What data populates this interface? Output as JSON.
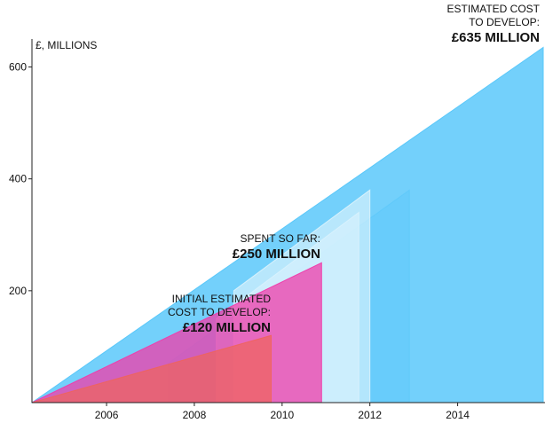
{
  "chart_data": {
    "type": "area",
    "title": "",
    "xlabel": "",
    "ylabel": "£, MILLIONS",
    "xlim": [
      2004.3,
      2015.95
    ],
    "ylim": [
      0,
      650
    ],
    "x_ticks": [
      "2006",
      "2008",
      "2010",
      "2012",
      "2014"
    ],
    "y_ticks": [
      "200",
      "400",
      "600"
    ],
    "series": [
      {
        "color": "#5ac8fa",
        "opacity": 0.85,
        "points": [
          [
            2004.3,
            0
          ],
          [
            2015.95,
            635
          ],
          [
            2015.95,
            0
          ]
        ]
      },
      {
        "color": "#5ac8fa",
        "opacity": 0.45,
        "points": [
          [
            2007.4,
            70
          ],
          [
            2012.9,
            380
          ],
          [
            2012.9,
            0
          ],
          [
            2007.4,
            0
          ]
        ]
      },
      {
        "color": "#cfeefd",
        "opacity": 0.6,
        "points": [
          [
            2008.5,
            150
          ],
          [
            2011.75,
            340
          ],
          [
            2011.75,
            0
          ],
          [
            2008.5,
            0
          ]
        ]
      },
      {
        "color": "#e6f6fd",
        "opacity": 0.6,
        "points": [
          [
            2008.9,
            200
          ],
          [
            2012.0,
            380
          ],
          [
            2012.0,
            0
          ],
          [
            2008.9,
            0
          ]
        ]
      },
      {
        "color": "#f03caa",
        "opacity": 0.75,
        "points": [
          [
            2004.3,
            0
          ],
          [
            2010.9,
            250
          ],
          [
            2010.9,
            0
          ]
        ]
      },
      {
        "color": "#f0645a",
        "opacity": 0.7,
        "points": [
          [
            2004.3,
            0
          ],
          [
            2009.75,
            120
          ],
          [
            2009.75,
            0
          ]
        ]
      }
    ],
    "annotations": {
      "estimated": {
        "line1": "ESTIMATED COST",
        "line2": "TO DEVELOP:",
        "value": "£635 MILLION"
      },
      "spent": {
        "line1": "SPENT SO FAR:",
        "value": "£250 MILLION"
      },
      "initial": {
        "line1": "INITIAL ESTIMATED",
        "line2": "COST TO DEVELOP:",
        "value": "£120 MILLION"
      }
    }
  }
}
